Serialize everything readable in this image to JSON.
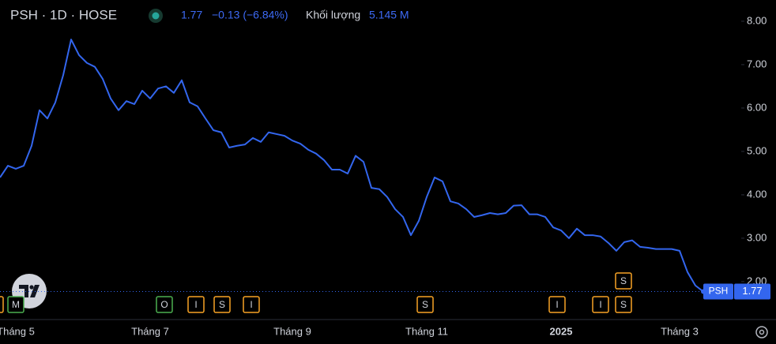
{
  "chart_data": {
    "type": "line",
    "title": "PSH · 1D · HOSE",
    "change": "−0.13 (−6.84%)",
    "volume_label": "Khối lượng",
    "volume": "5.145 M",
    "categories": [
      null,
      null,
      "Tháng 5",
      null,
      null,
      null,
      null,
      null,
      null,
      null,
      null,
      null,
      null,
      null,
      null,
      null,
      null,
      null,
      null,
      "Tháng 7",
      null,
      null,
      null,
      null,
      null,
      null,
      null,
      null,
      null,
      null,
      null,
      null,
      null,
      null,
      null,
      null,
      null,
      "Tháng 9",
      null,
      null,
      null,
      null,
      null,
      null,
      null,
      null,
      null,
      null,
      null,
      null,
      null,
      null,
      null,
      null,
      "Tháng 11",
      null,
      null,
      null,
      null,
      null,
      null,
      null,
      null,
      null,
      null,
      null,
      null,
      null,
      null,
      null,
      null,
      "2025",
      null,
      null,
      null,
      null,
      null,
      null,
      null,
      null,
      null,
      null,
      null,
      null,
      null,
      null,
      "Tháng 3",
      null,
      null,
      null
    ],
    "series": [
      {
        "name": "PSH",
        "color": "#3366ee",
        "values": [
          4.4,
          4.67,
          4.6,
          4.67,
          5.13,
          5.95,
          5.76,
          6.13,
          6.76,
          7.58,
          7.22,
          7.04,
          6.95,
          6.67,
          6.22,
          5.95,
          6.16,
          6.09,
          6.4,
          6.22,
          6.45,
          6.5,
          6.35,
          6.64,
          6.13,
          6.04,
          5.76,
          5.49,
          5.44,
          5.09,
          5.13,
          5.16,
          5.31,
          5.22,
          5.44,
          5.4,
          5.36,
          5.25,
          5.18,
          5.04,
          4.95,
          4.8,
          4.58,
          4.58,
          4.49,
          4.9,
          4.76,
          4.16,
          4.13,
          3.95,
          3.67,
          3.49,
          3.07,
          3.4,
          3.95,
          4.4,
          4.31,
          3.85,
          3.8,
          3.67,
          3.49,
          3.53,
          3.58,
          3.55,
          3.58,
          3.75,
          3.76,
          3.55,
          3.55,
          3.49,
          3.25,
          3.18,
          3.0,
          3.22,
          3.07,
          3.07,
          3.04,
          2.89,
          2.71,
          2.91,
          2.95,
          2.8,
          2.78,
          2.75,
          2.75,
          2.75,
          2.71,
          2.22,
          1.91,
          1.77
        ]
      }
    ],
    "ylim": [
      1.18,
      8.49
    ],
    "yticks": [
      {
        "value": 2,
        "label": "2.00"
      },
      {
        "value": 3,
        "label": "3.00"
      },
      {
        "value": 4,
        "label": "4.00"
      },
      {
        "value": 5,
        "label": "5.00"
      },
      {
        "value": 6,
        "label": "6.00"
      },
      {
        "value": 7,
        "label": "7.00"
      },
      {
        "value": 8,
        "label": "8.00"
      }
    ],
    "events": [
      "S",
      "M",
      "O",
      "I",
      "S",
      "I",
      "S",
      "I",
      "I",
      "S",
      "S"
    ]
  }
}
